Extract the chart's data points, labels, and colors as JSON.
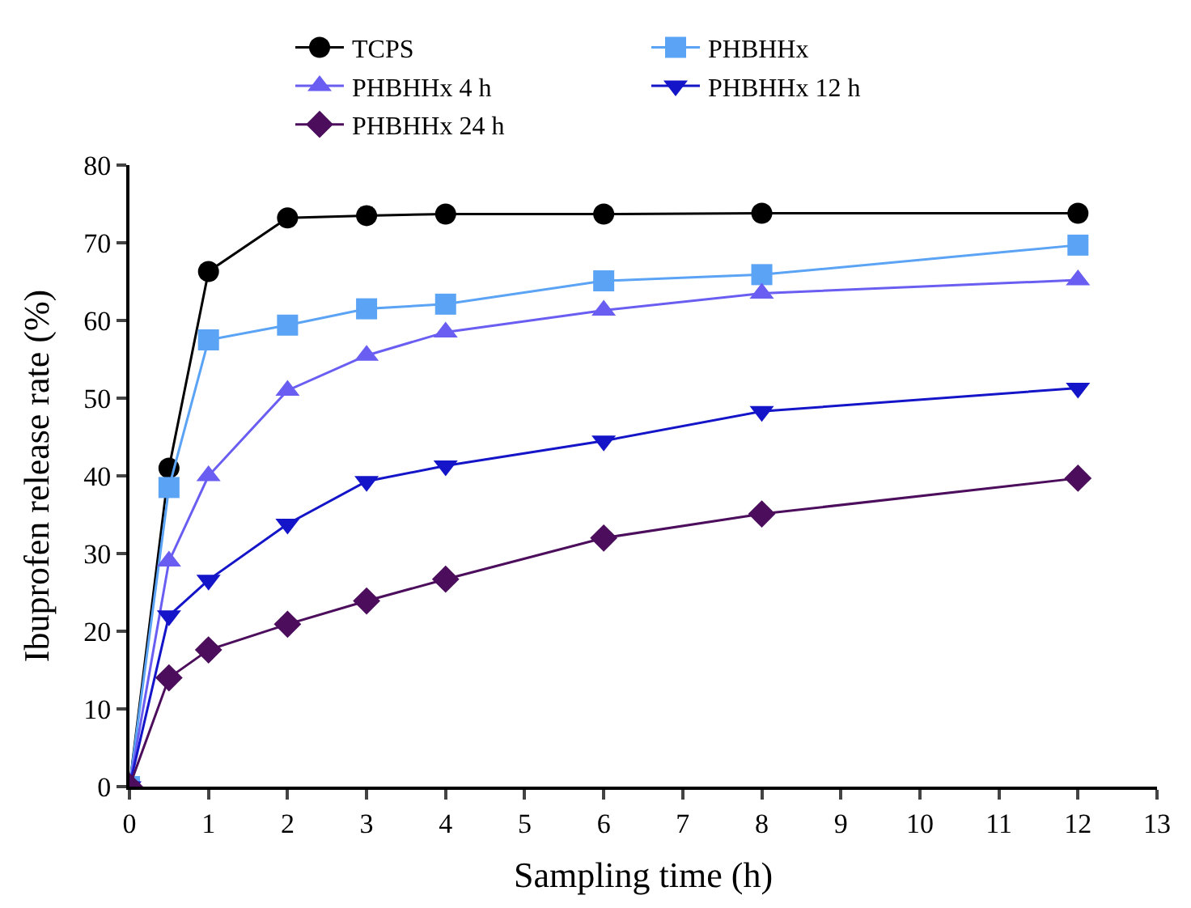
{
  "chart_data": {
    "type": "line",
    "xlabel": "Sampling time (h)",
    "ylabel": "Ibuprofen release rate (%)",
    "x": [
      0,
      0.5,
      1,
      2,
      3,
      4,
      6,
      8,
      12
    ],
    "series": [
      {
        "name": "TCPS",
        "color": "#000000",
        "marker": "circle",
        "values": [
          0,
          41,
          66.3,
          73.2,
          73.5,
          73.7,
          73.7,
          73.8,
          73.8
        ]
      },
      {
        "name": "PHBHHx",
        "color": "#5ba3f5",
        "marker": "square",
        "values": [
          0,
          38.5,
          57.5,
          59.4,
          61.5,
          62.1,
          65.1,
          65.9,
          69.7
        ]
      },
      {
        "name": "PHBHHx 4 h",
        "color": "#6a5ef2",
        "marker": "triangle",
        "values": [
          0,
          29,
          40,
          51,
          55.5,
          58.5,
          61.3,
          63.5,
          65.2
        ]
      },
      {
        "name": "PHBHHx 12 h",
        "color": "#1414c8",
        "marker": "triangle-down",
        "values": [
          0,
          22,
          26.6,
          33.8,
          39.3,
          41.3,
          44.5,
          48.3,
          51.3
        ]
      },
      {
        "name": "PHBHHx 24 h",
        "color": "#4b0d5c",
        "marker": "diamond",
        "values": [
          0,
          14,
          17.6,
          20.9,
          23.9,
          26.7,
          32,
          35.1,
          39.7
        ]
      }
    ],
    "xlim": [
      0,
      13
    ],
    "xticks": [
      0,
      1,
      2,
      3,
      4,
      5,
      6,
      7,
      8,
      9,
      10,
      11,
      12,
      13
    ],
    "ylim": [
      0,
      80
    ],
    "yticks": [
      0,
      10,
      20,
      30,
      40,
      50,
      60,
      70,
      80
    ],
    "legend": "top",
    "line_style": "solid"
  }
}
